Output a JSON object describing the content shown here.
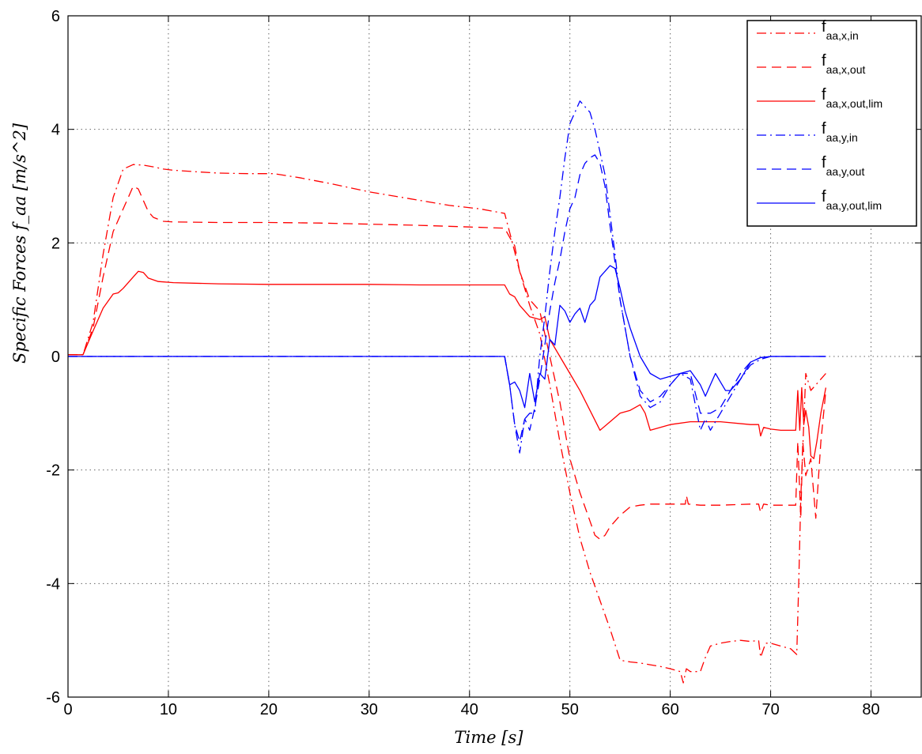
{
  "chart_data": {
    "type": "line",
    "title": "",
    "xlabel": "Time [s]",
    "ylabel": "Specific Forces f_aa [m/s^2]",
    "xlim": [
      0,
      85
    ],
    "ylim": [
      -6,
      6
    ],
    "xticks": [
      0,
      10,
      20,
      30,
      40,
      50,
      60,
      70,
      80
    ],
    "yticks": [
      -6,
      -4,
      -2,
      0,
      2,
      4,
      6
    ],
    "grid": true,
    "legend_position": "top-right",
    "series": [
      {
        "name": "f_aa,x,in",
        "legend_main": "f",
        "legend_sub": "aa,x,in",
        "color": "#ff0000",
        "style": "dashdot",
        "x": [
          0,
          1.5,
          2.5,
          3.5,
          4.5,
          5.5,
          6.5,
          7.5,
          8.5,
          9.5,
          10.5,
          13,
          15,
          18,
          20.5,
          23,
          26,
          30,
          34,
          38,
          41,
          43.5,
          44.2,
          45,
          46,
          47,
          48,
          49,
          50,
          51,
          52,
          53,
          54,
          55,
          56,
          57,
          58,
          59,
          60,
          61,
          61.3,
          61.6,
          62,
          62.5,
          63,
          63.5,
          64,
          65,
          66,
          67,
          68,
          68.8,
          69,
          69.5,
          70,
          71,
          72,
          72.6,
          72.8,
          73,
          73.5,
          74,
          74.5,
          75,
          75.5
        ],
        "y": [
          0.03,
          0.03,
          0.6,
          1.8,
          2.8,
          3.3,
          3.38,
          3.37,
          3.34,
          3.3,
          3.28,
          3.25,
          3.23,
          3.22,
          3.22,
          3.15,
          3.05,
          2.9,
          2.78,
          2.66,
          2.6,
          2.52,
          2.05,
          1.5,
          0.9,
          0.4,
          -0.5,
          -1.5,
          -2.4,
          -3.2,
          -3.8,
          -4.3,
          -4.8,
          -5.35,
          -5.38,
          -5.4,
          -5.43,
          -5.46,
          -5.5,
          -5.55,
          -5.75,
          -5.5,
          -5.55,
          -5.55,
          -5.55,
          -5.3,
          -5.1,
          -5.05,
          -5.02,
          -5.0,
          -5.02,
          -5.0,
          -5.3,
          -5.05,
          -5.05,
          -5.1,
          -5.15,
          -5.25,
          -4.0,
          -2.5,
          -0.3,
          -0.6,
          -0.5,
          -0.4,
          -0.3
        ]
      },
      {
        "name": "f_aa,x,out",
        "legend_main": "f",
        "legend_sub": "aa,x,out",
        "color": "#ff0000",
        "style": "dashed",
        "x": [
          0,
          1.5,
          2.5,
          3.5,
          4.5,
          5.5,
          6,
          6.5,
          7,
          7.5,
          8,
          8.5,
          9.5,
          10.5,
          15,
          20,
          25,
          30,
          35,
          40,
          43.5,
          44,
          44.5,
          45,
          46,
          47,
          48,
          49,
          50,
          51,
          52,
          52.5,
          53,
          53.5,
          54,
          55,
          56,
          57,
          58,
          60,
          61.5,
          61.6,
          61.8,
          63,
          65,
          68,
          68.8,
          69,
          69.3,
          70,
          71,
          72,
          72.5,
          72.7,
          73,
          73.2,
          73.5,
          74,
          74.5,
          75,
          75.5
        ],
        "y": [
          0.03,
          0.03,
          0.5,
          1.4,
          2.2,
          2.6,
          2.8,
          3.0,
          2.95,
          2.75,
          2.55,
          2.45,
          2.38,
          2.37,
          2.36,
          2.36,
          2.35,
          2.33,
          2.31,
          2.28,
          2.26,
          2.1,
          1.95,
          1.5,
          1.0,
          0.8,
          0.0,
          -0.8,
          -1.8,
          -2.4,
          -2.9,
          -3.15,
          -3.22,
          -3.15,
          -3.0,
          -2.8,
          -2.65,
          -2.62,
          -2.6,
          -2.6,
          -2.6,
          -2.45,
          -2.6,
          -2.62,
          -2.62,
          -2.6,
          -2.6,
          -2.75,
          -2.6,
          -2.62,
          -2.62,
          -2.62,
          -2.62,
          -1.5,
          -2.85,
          -1.5,
          -2.1,
          -1.8,
          -2.85,
          -1.5,
          -0.6
        ]
      },
      {
        "name": "f_aa,x,out,lim",
        "legend_main": "f",
        "legend_sub": "aa,x,out,lim",
        "color": "#ff0000",
        "style": "solid",
        "x": [
          0,
          1.5,
          2.5,
          3.5,
          4.5,
          5,
          5.5,
          6,
          6.5,
          7,
          7.5,
          8,
          9,
          10.5,
          15,
          20,
          25,
          30,
          35,
          40,
          43.5,
          44,
          44.5,
          45,
          46,
          47,
          47.5,
          48,
          49,
          50,
          51,
          52,
          53,
          54,
          55,
          56,
          57,
          57.5,
          58,
          60,
          62,
          65,
          68,
          68.8,
          69,
          69.3,
          70,
          71,
          72,
          72.5,
          72.7,
          72.9,
          73.1,
          73.3,
          73.5,
          73.8,
          74,
          74.3,
          74.6,
          75,
          75.5
        ],
        "y": [
          0.03,
          0.03,
          0.45,
          0.85,
          1.1,
          1.12,
          1.2,
          1.3,
          1.4,
          1.5,
          1.48,
          1.38,
          1.32,
          1.3,
          1.28,
          1.27,
          1.27,
          1.27,
          1.26,
          1.26,
          1.26,
          1.1,
          1.05,
          0.9,
          0.7,
          0.65,
          0.7,
          0.3,
          0.0,
          -0.3,
          -0.6,
          -0.95,
          -1.3,
          -1.15,
          -1.0,
          -0.95,
          -0.85,
          -1.0,
          -1.3,
          -1.2,
          -1.15,
          -1.15,
          -1.2,
          -1.2,
          -1.4,
          -1.25,
          -1.28,
          -1.3,
          -1.3,
          -1.3,
          -0.6,
          -1.3,
          -0.55,
          -1.2,
          -0.95,
          -1.25,
          -1.75,
          -1.8,
          -1.5,
          -1.0,
          -0.55
        ]
      },
      {
        "name": "f_aa,y,in",
        "legend_main": "f",
        "legend_sub": "aa,y,in",
        "color": "#0000ff",
        "style": "dashdot",
        "x": [
          0,
          10,
          20,
          30,
          40,
          43.5,
          44,
          44.5,
          45,
          45.5,
          46,
          46.5,
          47,
          47.5,
          48,
          48.5,
          49,
          49.5,
          50,
          50.5,
          51,
          51.5,
          52,
          52.5,
          53,
          53.5,
          54,
          54.5,
          55,
          56,
          57,
          58,
          59,
          60,
          61,
          62,
          63,
          63.5,
          64,
          65,
          66,
          67,
          68,
          69,
          70,
          72,
          75.5
        ],
        "y": [
          0.0,
          0.0,
          0.0,
          0.0,
          0.0,
          0.0,
          -0.5,
          -1.2,
          -1.7,
          -1.1,
          -1.0,
          -1.0,
          0.0,
          0.7,
          1.5,
          2.2,
          2.8,
          3.5,
          4.1,
          4.3,
          4.5,
          4.4,
          4.3,
          4.0,
          3.6,
          3.2,
          2.5,
          1.8,
          1.0,
          0.0,
          -0.7,
          -0.9,
          -0.8,
          -0.5,
          -0.3,
          -0.4,
          -1.3,
          -1.1,
          -1.3,
          -1.0,
          -0.7,
          -0.4,
          -0.15,
          -0.05,
          0.0,
          0.0,
          0.0
        ]
      },
      {
        "name": "f_aa,y,out",
        "legend_main": "f",
        "legend_sub": "aa,y,out",
        "color": "#0000ff",
        "style": "dashed",
        "x": [
          0,
          10,
          20,
          30,
          40,
          43.5,
          44,
          44.5,
          45,
          45.5,
          46,
          46.5,
          47,
          47.5,
          48,
          48.5,
          49,
          49.5,
          50,
          50.5,
          51,
          51.5,
          52,
          52.5,
          53,
          53.5,
          54,
          55,
          56,
          57,
          58,
          59,
          60,
          61,
          62,
          63,
          64,
          65,
          66,
          67,
          68,
          69,
          70,
          72,
          75.5
        ],
        "y": [
          0.0,
          0.0,
          0.0,
          0.0,
          0.0,
          0.0,
          -0.5,
          -1.2,
          -1.5,
          -1.1,
          -1.3,
          -0.9,
          -0.4,
          0.2,
          0.8,
          1.3,
          1.7,
          2.2,
          2.6,
          2.8,
          3.2,
          3.4,
          3.5,
          3.55,
          3.4,
          3.0,
          2.3,
          1.0,
          0.0,
          -0.6,
          -0.8,
          -0.7,
          -0.5,
          -0.3,
          -0.3,
          -1.0,
          -1.0,
          -0.9,
          -0.6,
          -0.3,
          -0.1,
          -0.02,
          0.0,
          0.0,
          0.0
        ]
      },
      {
        "name": "f_aa,y,out,lim",
        "legend_main": "f",
        "legend_sub": "aa,y,out,lim",
        "color": "#0000ff",
        "style": "solid",
        "x": [
          0,
          10,
          20,
          30,
          40,
          43.5,
          44,
          44.5,
          45,
          45.5,
          46,
          46.5,
          47,
          47.5,
          48,
          48.5,
          49,
          49.5,
          50,
          50.5,
          51,
          51.5,
          52,
          52.5,
          53,
          53.5,
          54,
          54.5,
          55,
          55.5,
          56,
          57,
          58,
          59,
          60,
          61,
          62,
          63,
          63.5,
          64,
          64.5,
          65,
          65.5,
          66,
          67,
          68,
          69,
          70,
          72,
          75.5
        ],
        "y": [
          0.0,
          0.0,
          0.0,
          0.0,
          0.0,
          0.0,
          -0.5,
          -0.45,
          -0.6,
          -0.9,
          -0.3,
          -0.8,
          -0.3,
          -0.4,
          0.3,
          0.2,
          0.9,
          0.8,
          0.6,
          0.75,
          0.85,
          0.6,
          0.9,
          1.0,
          1.4,
          1.5,
          1.6,
          1.55,
          1.2,
          0.8,
          0.5,
          0.0,
          -0.3,
          -0.4,
          -0.35,
          -0.3,
          -0.25,
          -0.5,
          -0.7,
          -0.5,
          -0.3,
          -0.45,
          -0.6,
          -0.6,
          -0.4,
          -0.1,
          -0.02,
          0.0,
          0.0,
          0.0
        ]
      }
    ]
  }
}
